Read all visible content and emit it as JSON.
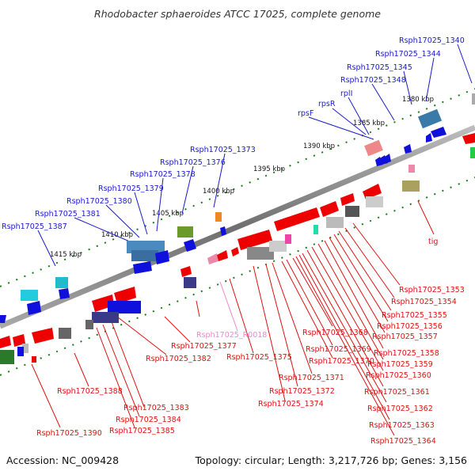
{
  "header": {
    "title": "Rhodobacter sphaeroides ATCC 17025, complete genome"
  },
  "footer": {
    "accession": "Accession: NC_009428",
    "topology": "Topology: circular; Length: 3,217,726 bp; Genes: 3,156"
  },
  "scale_marks": [
    "1380 kbp",
    "1385 kbp",
    "1390 kbp",
    "1395 kbp",
    "1400 kbp",
    "1405 kbp",
    "1410 kbp",
    "1415 kbp"
  ],
  "colors": {
    "forward_label": "#1a1acc",
    "reverse_label": "#dd1111",
    "rna_label": "#ee88cc",
    "backbone": "#8a8a8a",
    "tick_dots": "#1a7a1a"
  },
  "forward_labels": [
    "Rsph17025_1340",
    "Rsph17025_1344",
    "Rsph17025_1345",
    "Rsph17025_1348",
    "rplI",
    "rpsR",
    "rpsF",
    "Rsph17025_1373",
    "Rsph17025_1376",
    "Rsph17025_1378",
    "Rsph17025_1379",
    "Rsph17025_1380",
    "Rsph17025_1381",
    "Rsph17025_1387"
  ],
  "reverse_labels": [
    "tig",
    "Rsph17025_1353",
    "Rsph17025_1354",
    "Rsph17025_1355",
    "Rsph17025_1356",
    "Rsph17025_1357",
    "Rsph17025_1358",
    "Rsph17025_1359",
    "Rsph17025_1360",
    "Rsph17025_1361",
    "Rsph17025_1362",
    "Rsph17025_1363",
    "Rsph17025_1364",
    "Rsph17025_1368",
    "Rsph17025_1369",
    "Rsph17025_1370",
    "Rsph17025_1371",
    "Rsph17025_1372",
    "Rsph17025_1374",
    "Rsph17025_1375",
    "Rsph17025_1377",
    "Rsph17025_1382",
    "Rsph17025_1383",
    "Rsph17025_1384",
    "Rsph17025_1385",
    "Rsph17025_1388",
    "Rsph17025_1390"
  ],
  "rna_labels": [
    "Rsph17025_R0018"
  ]
}
